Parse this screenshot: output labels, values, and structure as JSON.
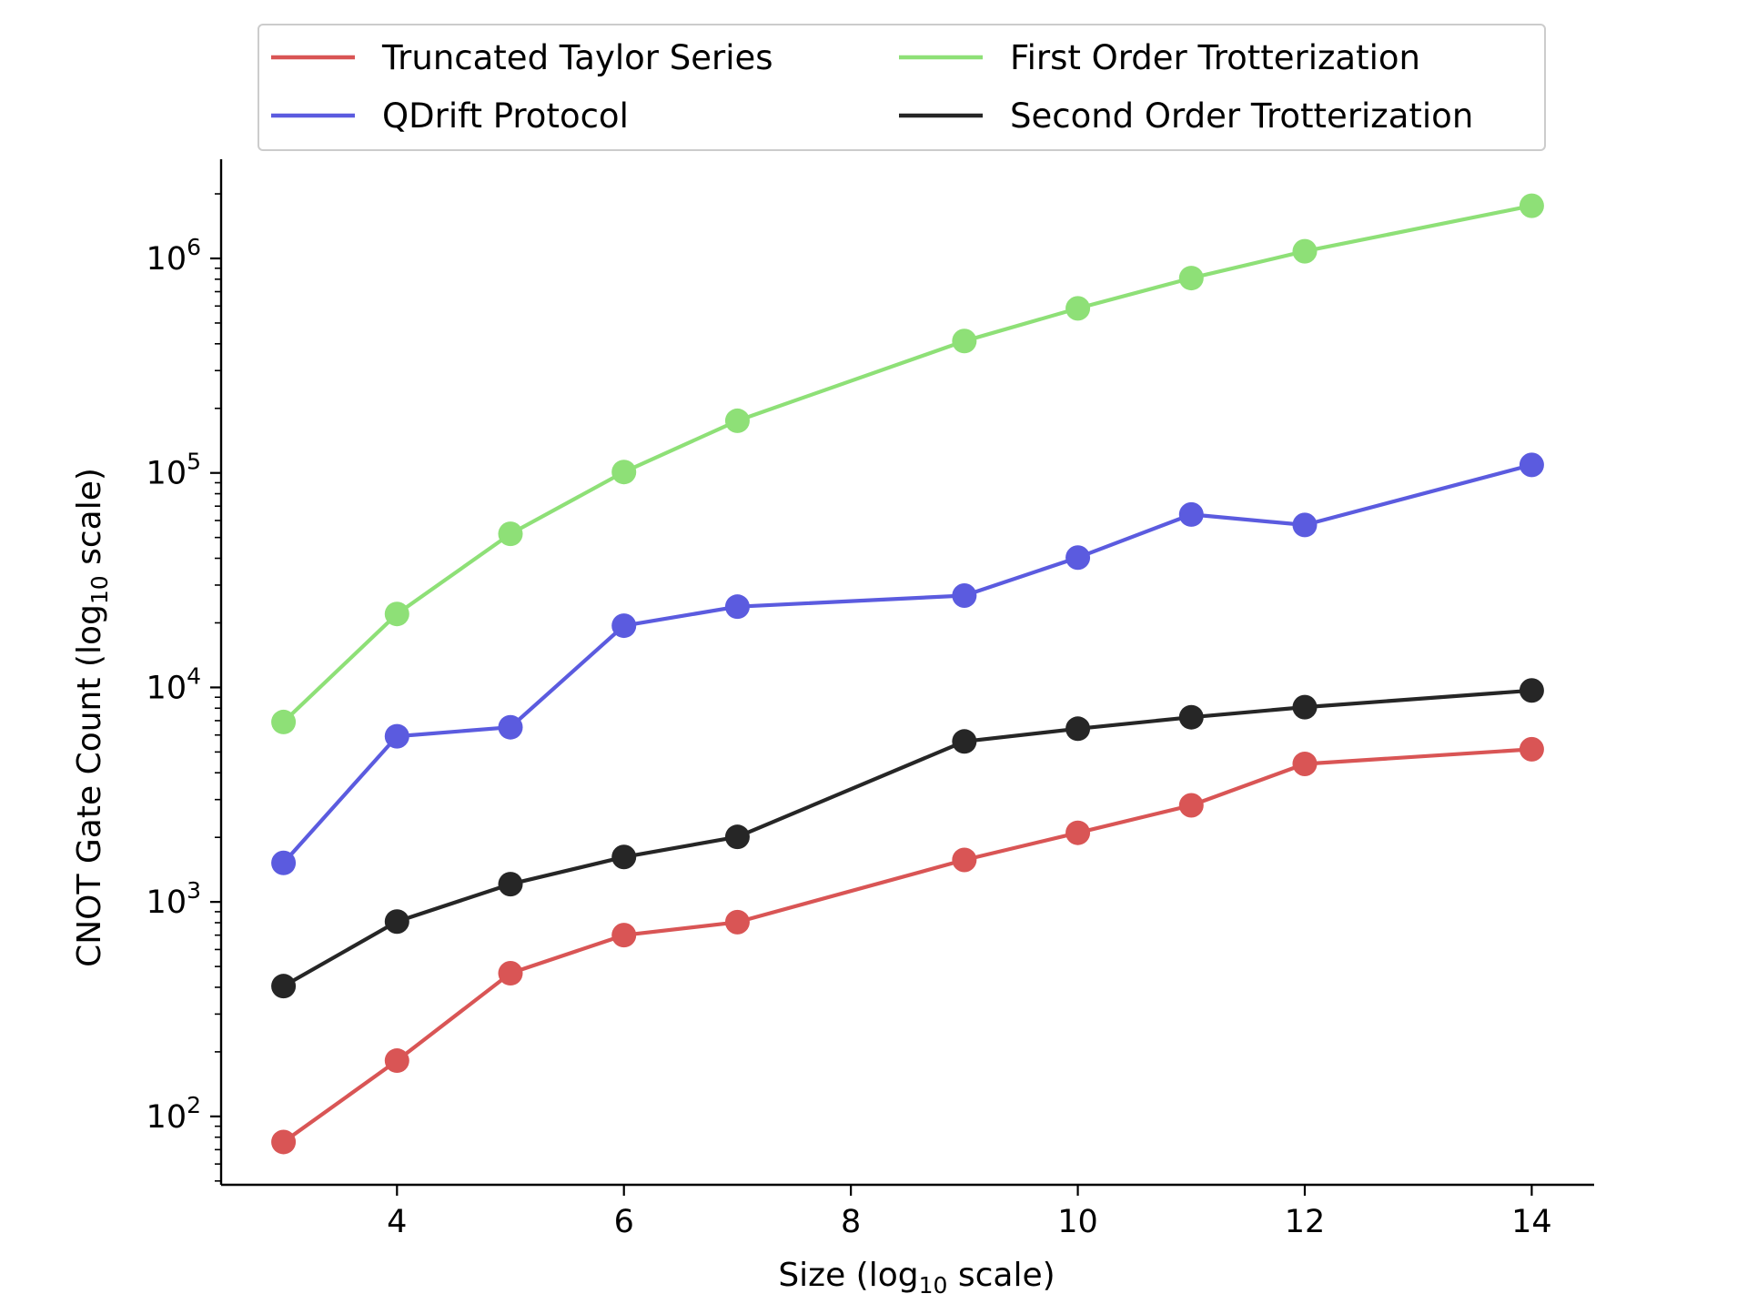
{
  "chart_data": {
    "type": "line",
    "xlabel": "Size (log",
    "xlabel_sub": "10",
    "xlabel_suffix": " scale)",
    "ylabel": "CNOT Gate Count (log",
    "ylabel_sub": "10",
    "ylabel_suffix": " scale)",
    "x_scale": "linear",
    "y_scale": "log",
    "xlim": [
      2.45,
      14.55
    ],
    "ylim": [
      48,
      2900000
    ],
    "x_ticks": [
      4,
      6,
      8,
      10,
      12,
      14
    ],
    "x_tick_labels": [
      "4",
      "6",
      "8",
      "10",
      "12",
      "14"
    ],
    "y_ticks": [
      100,
      1000,
      10000,
      100000,
      1000000
    ],
    "y_tick_labels": [
      {
        "base": "10",
        "exp": "2"
      },
      {
        "base": "10",
        "exp": "3"
      },
      {
        "base": "10",
        "exp": "4"
      },
      {
        "base": "10",
        "exp": "5"
      },
      {
        "base": "10",
        "exp": "6"
      }
    ],
    "grid": false,
    "legend_position": "top",
    "legend_columns": 2,
    "series": [
      {
        "name": "Truncated Taylor Series",
        "color": "#d95555",
        "x": [
          3,
          4,
          5,
          6,
          7,
          9,
          10,
          11,
          12,
          14
        ],
        "y": [
          76,
          182,
          465,
          700,
          805,
          1570,
          2100,
          2820,
          4400,
          5150
        ]
      },
      {
        "name": "QDrift Protocol",
        "color": "#5b5bdf",
        "x": [
          3,
          4,
          5,
          6,
          7,
          9,
          10,
          11,
          12,
          14
        ],
        "y": [
          1520,
          5920,
          6520,
          19400,
          23800,
          26800,
          40300,
          64000,
          57200,
          109000
        ]
      },
      {
        "name": "First Order Trotterization",
        "color": "#8ee077",
        "x": [
          3,
          4,
          5,
          6,
          7,
          9,
          10,
          11,
          12,
          14
        ],
        "y": [
          6900,
          22000,
          52000,
          101000,
          175000,
          412000,
          585000,
          810000,
          1080000,
          1760000
        ]
      },
      {
        "name": "Second Order Trotterization",
        "color": "#262626",
        "x": [
          3,
          4,
          5,
          6,
          7,
          9,
          10,
          11,
          12,
          14
        ],
        "y": [
          405,
          810,
          1210,
          1620,
          2010,
          5600,
          6420,
          7260,
          8090,
          9680
        ]
      }
    ]
  }
}
